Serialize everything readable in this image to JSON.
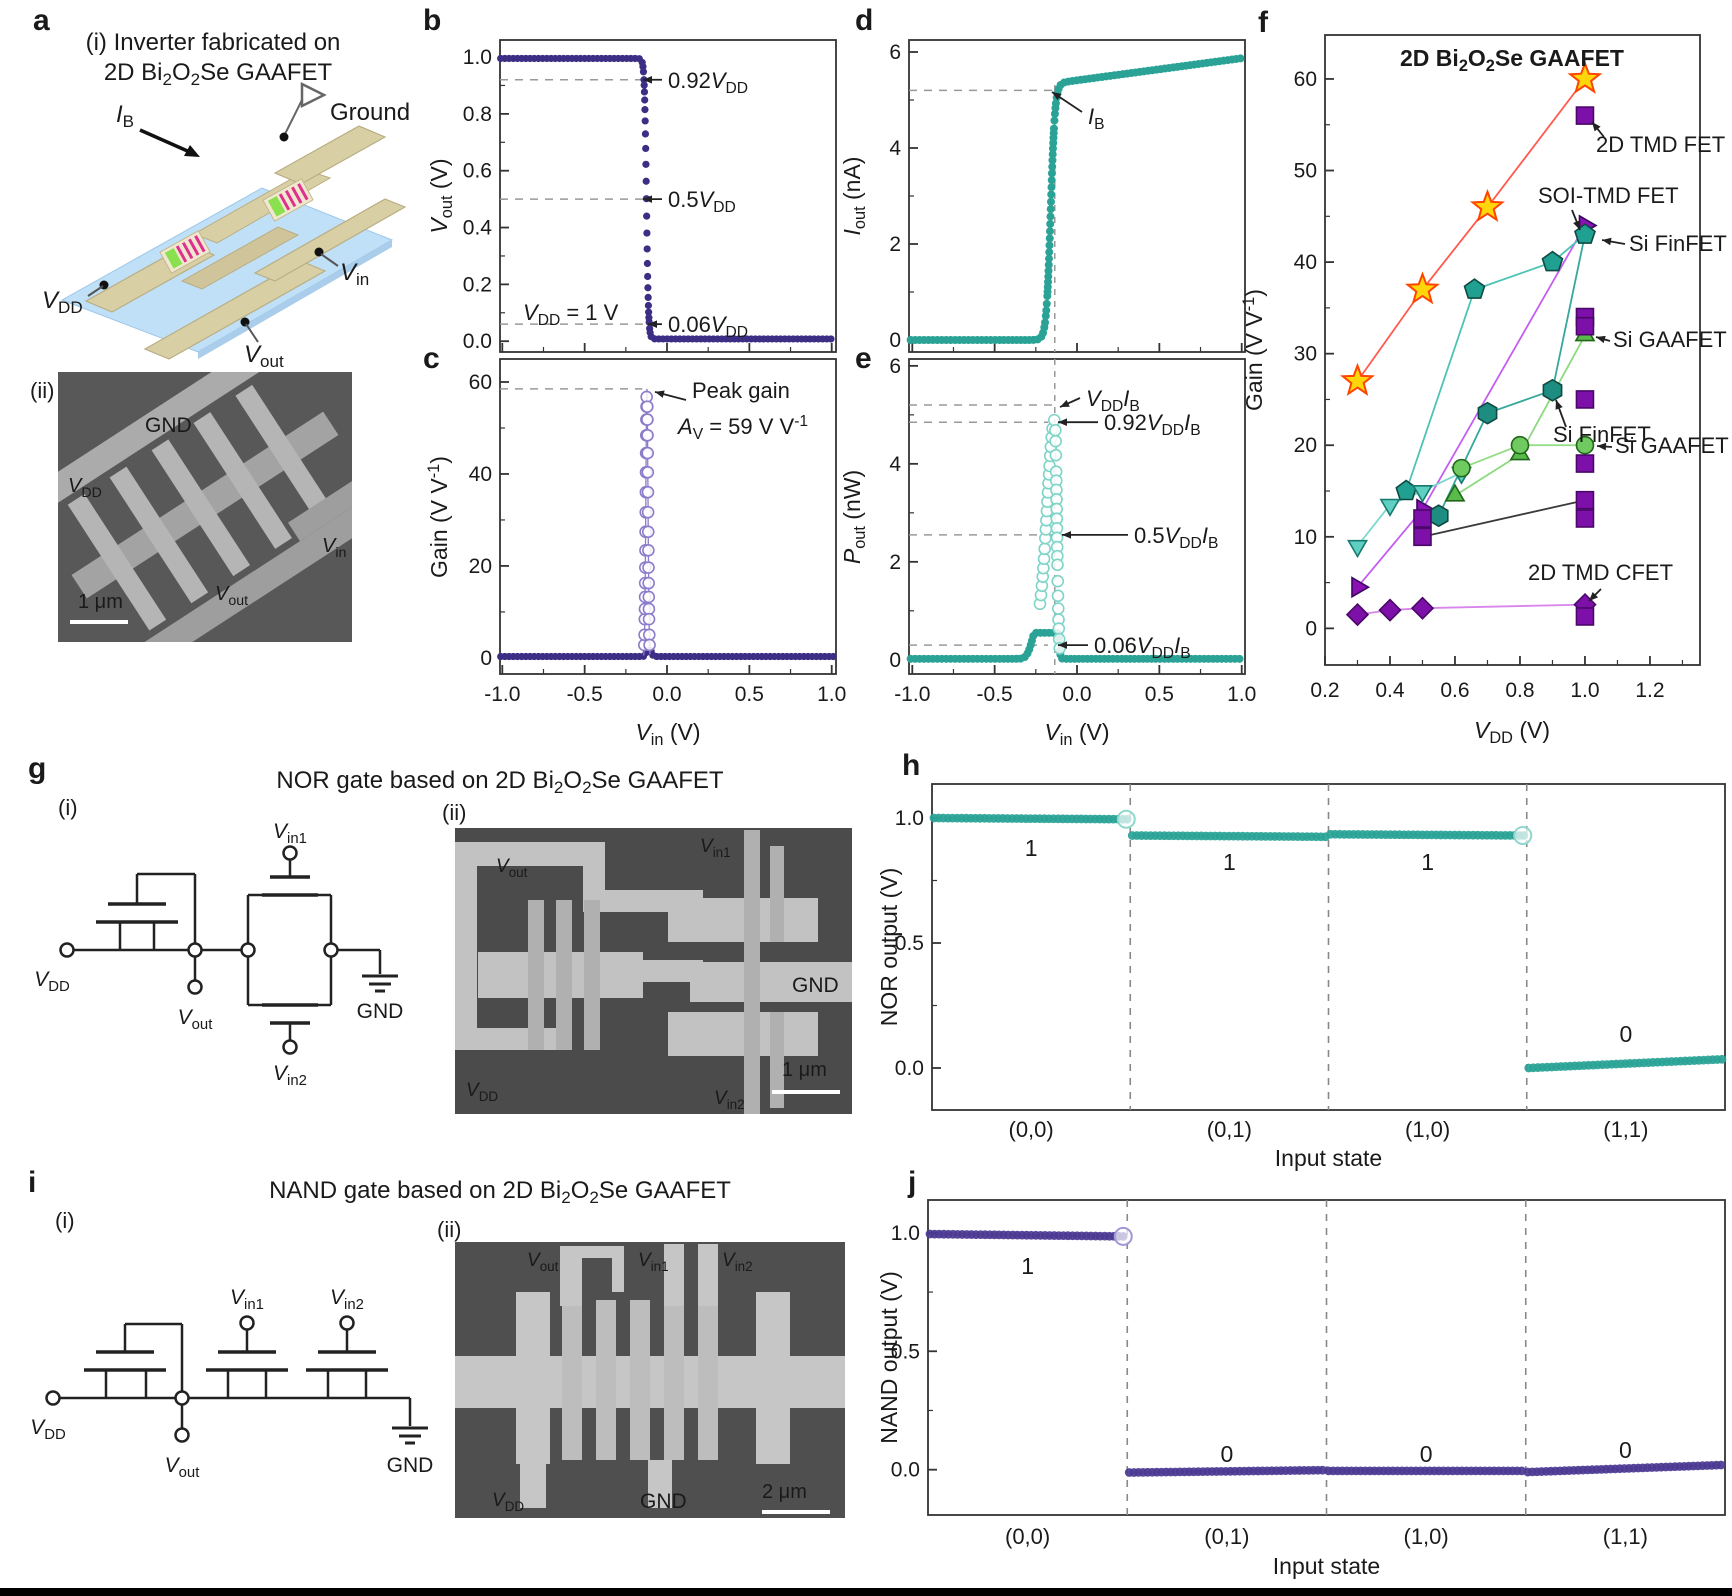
{
  "letters": {
    "a": "a",
    "b": "b",
    "c": "c",
    "d": "d",
    "e": "e",
    "f": "f",
    "g": "g",
    "h": "h",
    "i": "i",
    "j": "j"
  },
  "panel_a": {
    "title_line1": "(i) Inverter fabricated on",
    "sub_ii": "(ii)",
    "sem": {
      "gnd": "GND",
      "scale": "1 μm"
    }
  },
  "panel_g": {
    "sub_i": "(i)",
    "sub_ii": "(ii)",
    "sem_scale": "1 μm",
    "gnd": "GND"
  },
  "panel_i": {
    "sub_i": "(i)",
    "sub_ii": "(ii)",
    "sem_scale": "2 μm",
    "gnd": "GND"
  },
  "rich": {
    "bi2o2se": [
      {
        "t": "2D Bi"
      },
      {
        "t": "2",
        "sub": 1
      },
      {
        "t": "O"
      },
      {
        "t": "2",
        "sub": 1
      },
      {
        "t": "Se GAAFET"
      }
    ],
    "g_title": [
      {
        "t": "NOR gate based on 2D Bi"
      },
      {
        "t": "2",
        "sub": 1
      },
      {
        "t": "O"
      },
      {
        "t": "2",
        "sub": 1
      },
      {
        "t": "Se GAAFET"
      }
    ],
    "i_title": [
      {
        "t": "NAND gate based on 2D Bi"
      },
      {
        "t": "2",
        "sub": 1
      },
      {
        "t": "O"
      },
      {
        "t": "2",
        "sub": 1
      },
      {
        "t": "Se GAAFET"
      }
    ],
    "vdd": [
      {
        "t": "V",
        "i": 1
      },
      {
        "t": "DD",
        "sub": 1
      }
    ],
    "vin": [
      {
        "t": "V",
        "i": 1
      },
      {
        "t": "in",
        "sub": 1
      }
    ],
    "vout": [
      {
        "t": "V",
        "i": 1
      },
      {
        "t": "out",
        "sub": 1
      }
    ],
    "vin1": [
      {
        "t": "V",
        "i": 1
      },
      {
        "t": "in1",
        "sub": 1
      }
    ],
    "vin2": [
      {
        "t": "V",
        "i": 1
      },
      {
        "t": "in2",
        "sub": 1
      }
    ],
    "ib": [
      {
        "t": "I",
        "i": 1
      },
      {
        "t": "B",
        "sub": 1
      }
    ],
    "gnd": [
      {
        "t": "GND"
      }
    ],
    "ground": [
      {
        "t": "Ground"
      }
    ],
    "vin_axis": [
      {
        "t": "V",
        "i": 1
      },
      {
        "t": "in",
        "sub": 1
      },
      {
        "t": " (V)"
      }
    ],
    "vdd_axis": [
      {
        "t": "V",
        "i": 1
      },
      {
        "t": "DD",
        "sub": 1
      },
      {
        "t": " (V)"
      }
    ],
    "vout_axis": [
      {
        "t": "V",
        "i": 1
      },
      {
        "t": "out",
        "sub": 1
      },
      {
        "t": " (V)"
      }
    ],
    "iout_axis": [
      {
        "t": "I",
        "i": 1
      },
      {
        "t": "out",
        "sub": 1
      },
      {
        "t": " (nA)"
      }
    ],
    "pout_axis": [
      {
        "t": "P",
        "i": 1
      },
      {
        "t": "out",
        "sub": 1
      },
      {
        "t": " (nW)"
      }
    ],
    "gain_axis": [
      {
        "t": "Gain (V V"
      },
      {
        "t": "-1",
        "sup": 1
      },
      {
        "t": ")"
      }
    ],
    "nor_axis": [
      {
        "t": "NOR output (V)"
      }
    ],
    "nand_axis": [
      {
        "t": "NAND output (V)"
      }
    ],
    "input_state": [
      {
        "t": "Input state"
      }
    ],
    "ann_b_092": [
      {
        "t": "0.92"
      },
      {
        "t": "V",
        "i": 1
      },
      {
        "t": "DD",
        "sub": 1
      }
    ],
    "ann_b_05": [
      {
        "t": "0.5"
      },
      {
        "t": "V",
        "i": 1
      },
      {
        "t": "DD",
        "sub": 1
      }
    ],
    "ann_b_006": [
      {
        "t": "0.06"
      },
      {
        "t": "V",
        "i": 1
      },
      {
        "t": "DD",
        "sub": 1
      }
    ],
    "ann_b_vdd1": [
      {
        "t": "V",
        "i": 1
      },
      {
        "t": "DD",
        "sub": 1
      },
      {
        "t": " = 1 V"
      }
    ],
    "ann_c_peak": [
      {
        "t": "Peak gain"
      }
    ],
    "ann_c_av": [
      {
        "t": "A",
        "i": 1
      },
      {
        "t": "V",
        "sub": 1
      },
      {
        "t": " = 59 V V"
      },
      {
        "t": "-1",
        "sup": 1
      }
    ],
    "ann_e_vi": [
      {
        "t": "V",
        "i": 1
      },
      {
        "t": "DD",
        "sub": 1
      },
      {
        "t": "I",
        "i": 1
      },
      {
        "t": "B",
        "sub": 1
      }
    ],
    "ann_e_092": [
      {
        "t": "0.92"
      },
      {
        "t": "V",
        "i": 1
      },
      {
        "t": "DD",
        "sub": 1
      },
      {
        "t": "I",
        "i": 1
      },
      {
        "t": "B",
        "sub": 1
      }
    ],
    "ann_e_05": [
      {
        "t": "0.5"
      },
      {
        "t": "V",
        "i": 1
      },
      {
        "t": "DD",
        "sub": 1
      },
      {
        "t": "I",
        "i": 1
      },
      {
        "t": "B",
        "sub": 1
      }
    ],
    "ann_e_006": [
      {
        "t": "0.06"
      },
      {
        "t": "V",
        "i": 1
      },
      {
        "t": "DD",
        "sub": 1
      },
      {
        "t": "I",
        "i": 1
      },
      {
        "t": "B",
        "sub": 1
      }
    ],
    "f_tmdfet": [
      {
        "t": "2D TMD FET"
      }
    ],
    "f_soitmd": [
      {
        "t": "SOI-TMD FET"
      }
    ],
    "f_finfet": [
      {
        "t": "Si FinFET"
      }
    ],
    "f_gaafet": [
      {
        "t": "Si GAAFET"
      }
    ],
    "f_cfet": [
      {
        "t": "2D TMD CFET"
      }
    ]
  },
  "chart_data": [
    {
      "id": "b",
      "type": "line",
      "title": "",
      "xlabel": "V_in (V)",
      "ylabel": "V_out (V)",
      "xlim": [
        -1.0,
        1.0
      ],
      "ylim": [
        0,
        1.05
      ],
      "yticks": {
        "values": [
          0,
          0.2,
          0.4,
          0.6,
          0.8,
          1.0
        ],
        "labels": [
          "0.0",
          "0.2",
          "0.4",
          "0.6",
          "0.8",
          "1.0"
        ]
      },
      "curve": {
        "high": 0.995,
        "low": 0.008,
        "center": -0.125,
        "width": 0.006
      },
      "dashes": [
        0.92,
        0.5,
        0.06
      ],
      "annotations": [
        "0.92 VDD",
        "0.5 VDD",
        "0.06 VDD",
        "VDD = 1 V"
      ],
      "color": "#3d2e85"
    },
    {
      "id": "c",
      "type": "line",
      "xlabel": "V_in (V)",
      "ylabel": "Gain (V V-1)",
      "xlim": [
        -1.0,
        1.0
      ],
      "ylim": [
        0,
        62
      ],
      "yticks": {
        "values": [
          0,
          20,
          40,
          60
        ],
        "labels": [
          "0",
          "20",
          "40",
          "60"
        ]
      },
      "xticks": {
        "values": [
          -1.0,
          -0.5,
          0.0,
          0.5,
          1.0
        ],
        "labels": [
          "-1.0",
          "-0.5",
          "0.0",
          "0.5",
          "1.0"
        ]
      },
      "peak": {
        "amp": 58.5,
        "center": -0.122,
        "sigma": 0.0065
      },
      "baseline": 0.3,
      "dash": 58.5,
      "annotations": [
        "Peak gain",
        "AV = 59 V V-1"
      ],
      "color": "#3d2e85",
      "circle_color": "#8d7cc9"
    },
    {
      "id": "d",
      "type": "line",
      "xlabel": "V_in (V)",
      "ylabel": "I_out (nA)",
      "xlim": [
        -1.0,
        1.0
      ],
      "ylim": [
        0,
        6.2
      ],
      "yticks": {
        "values": [
          0,
          2,
          4,
          6
        ],
        "labels": [
          "0",
          "2",
          "4",
          "6"
        ]
      },
      "curve": {
        "plateau": 5.35,
        "center": -0.16,
        "width": 0.013,
        "slope": 0.46,
        "knee": -0.13,
        "cap": 5.92
      },
      "dash_y": 5.2,
      "dash_x": -0.135,
      "annotations": [
        "IB"
      ],
      "color": "#2aa396"
    },
    {
      "id": "e",
      "type": "line",
      "xlabel": "V_in (V)",
      "ylabel": "P_out (nW)",
      "xlim": [
        -1.0,
        1.0
      ],
      "ylim": [
        0,
        6.1
      ],
      "yticks": {
        "values": [
          0,
          2,
          4,
          6
        ],
        "labels": [
          "0",
          "2",
          "4",
          "6"
        ]
      },
      "xticks": {
        "values": [
          -1.0,
          -0.5,
          0.0,
          0.5,
          1.0
        ],
        "labels": [
          "-1.0",
          "-0.5",
          "0.0",
          "0.5",
          "1.0"
        ]
      },
      "peak": {
        "amp": 4.88,
        "center": -0.135,
        "sigL": 0.048,
        "sigR": 0.012
      },
      "shoulder": {
        "amp": 0.4,
        "center": -0.25,
        "sig": 0.03
      },
      "dashes": [
        5.2,
        4.85,
        2.55,
        0.3
      ],
      "dash_x": -0.135,
      "annotations": [
        "VDD IB",
        "0.92 VDD IB",
        "0.5 VDD IB",
        "0.06 VDD IB"
      ],
      "color": "#2aa396",
      "circle_color": "#7fd4c8"
    },
    {
      "id": "f",
      "type": "scatter",
      "title": "2D Bi2O2Se GAAFET",
      "xlabel": "V_DD (V)",
      "ylabel": "Gain (V V-1)",
      "xlim": [
        0.2,
        1.35
      ],
      "ylim": [
        -4,
        64.8
      ],
      "xticks": {
        "values": [
          0.2,
          0.4,
          0.6,
          0.8,
          1.0,
          1.2
        ],
        "labels": [
          "0.2",
          "0.4",
          "0.6",
          "0.8",
          "1.0",
          "1.2"
        ]
      },
      "yticks": {
        "values": [
          0,
          10,
          20,
          30,
          40,
          50,
          60
        ],
        "labels": [
          "0",
          "10",
          "20",
          "30",
          "40",
          "50",
          "60"
        ]
      },
      "series": [
        {
          "name": "2D Bi2O2Se GAAFET",
          "marker": "star",
          "fill": "#ffd60a",
          "stroke": "#ff4400",
          "line": "#ff5a4e",
          "points": [
            [
              0.3,
              27
            ],
            [
              0.5,
              37
            ],
            [
              0.7,
              46
            ],
            [
              1.0,
              60
            ]
          ]
        },
        {
          "name": "SOI-TMD FET",
          "marker": "tri_right",
          "fill": "#8a12b4",
          "stroke": "#3c0660",
          "line": "#c45ef2",
          "points": [
            [
              0.3,
              4.5
            ],
            [
              0.5,
              13
            ],
            [
              1.0,
              44
            ]
          ]
        },
        {
          "name": "Si FinFET",
          "marker": "pentagon",
          "fill": "#20a090",
          "stroke": "#0e4a42",
          "line": "#4cc3b4",
          "points": [
            [
              0.45,
              15
            ],
            [
              0.66,
              37
            ],
            [
              0.9,
              40
            ],
            [
              1.0,
              43
            ]
          ]
        },
        {
          "name": "Si FinFET",
          "marker": "hexagon",
          "fill": "#1d8d82",
          "stroke": "#0e4a42",
          "line": "#35a89b",
          "points": [
            [
              0.55,
              12.3
            ],
            [
              0.7,
              23.5
            ],
            [
              0.9,
              26
            ]
          ]
        },
        {
          "name": null,
          "marker": "tri_down",
          "fill": "#5ecfc0",
          "stroke": "#177a6e",
          "line": "#79d8cb",
          "points": [
            [
              0.3,
              9
            ],
            [
              0.4,
              13.5
            ],
            [
              0.5,
              15
            ],
            [
              0.62,
              17
            ]
          ]
        },
        {
          "name": "Si GAAFET",
          "marker": "tri_up",
          "fill": "#58bb4a",
          "stroke": "#22661c",
          "line": "#8cd97f",
          "points": [
            [
              0.6,
              14.5
            ],
            [
              0.8,
              19
            ],
            [
              1.0,
              32
            ]
          ]
        },
        {
          "name": "Si GAAFET",
          "marker": "circle",
          "fill": "#6fcb5f",
          "stroke": "#22661c",
          "line": "#97dd88",
          "points": [
            [
              0.62,
              17.5
            ],
            [
              0.8,
              20
            ],
            [
              1.0,
              20
            ]
          ]
        },
        {
          "name": "2D TMD FET",
          "marker": "square",
          "fill": "#7c10a8",
          "stroke": "#4a0868",
          "line": "#3a3a3a",
          "points": [
            [
              0.5,
              10
            ],
            [
              1.0,
              14
            ]
          ]
        },
        {
          "name": "2D TMD CFET",
          "marker": "diamond",
          "fill": "#7c10a8",
          "stroke": "#4a0868",
          "line": "#d985ec",
          "points": [
            [
              0.3,
              1.5
            ],
            [
              0.4,
              2
            ],
            [
              0.5,
              2.2
            ],
            [
              1.0,
              2.6
            ]
          ]
        },
        {
          "name": "2D TMD FET",
          "marker": "square",
          "fill": "#7c10a8",
          "stroke": "#4a0868",
          "line": null,
          "points": [
            [
              0.5,
              12
            ],
            [
              1.0,
              56
            ],
            [
              1.0,
              34
            ],
            [
              1.0,
              33
            ],
            [
              1.0,
              25
            ],
            [
              1.0,
              18
            ],
            [
              1.0,
              12
            ],
            [
              1.0,
              1.3
            ]
          ]
        }
      ],
      "extra_lines": [
        {
          "color": "#35a89b",
          "pts": [
            [
              0.9,
              26
            ],
            [
              1.0,
              43
            ]
          ]
        }
      ],
      "annotation_labels": [
        "2D Bi2O2Se GAAFET",
        "2D TMD FET",
        "SOI-TMD FET",
        "Si FinFET",
        "Si GAAFET",
        "Si FinFET",
        "Si GAAFET",
        "2D TMD CFET"
      ]
    },
    {
      "id": "h",
      "type": "step",
      "xlabel": "Input state",
      "ylabel": "NOR output (V)",
      "categories": [
        "(0,0)",
        "(0,1)",
        "(1,0)",
        "(1,1)"
      ],
      "bits": [
        "1",
        "1",
        "1",
        "0"
      ],
      "values": [
        1.0,
        0.93,
        0.93,
        0.0
      ],
      "segments": [
        [
          1.0,
          0.995
        ],
        [
          0.93,
          0.925
        ],
        [
          0.935,
          0.93
        ],
        [
          0.0,
          0.035
        ]
      ],
      "yticks": {
        "values": [
          0,
          0.5,
          1.0
        ],
        "labels": [
          "0.0",
          "0.5",
          "1.0"
        ]
      },
      "color": "#2aa396",
      "circle_color": "#8fd8cd"
    },
    {
      "id": "j",
      "type": "step",
      "xlabel": "Input state",
      "ylabel": "NAND output (V)",
      "categories": [
        "(0,0)",
        "(0,1)",
        "(1,0)",
        "(1,1)"
      ],
      "bits": [
        "1",
        "0",
        "0",
        "0"
      ],
      "values": [
        1.0,
        0.0,
        0.0,
        0.0
      ],
      "segments": [
        [
          0.995,
          0.985
        ],
        [
          -0.012,
          -0.002
        ],
        [
          -0.005,
          -0.005
        ],
        [
          -0.01,
          0.02
        ]
      ],
      "yticks": {
        "values": [
          0,
          0.5,
          1.0
        ],
        "labels": [
          "0.0",
          "0.5",
          "1.0"
        ]
      },
      "color": "#4b3a92",
      "circle_color": "#a396d6"
    }
  ]
}
